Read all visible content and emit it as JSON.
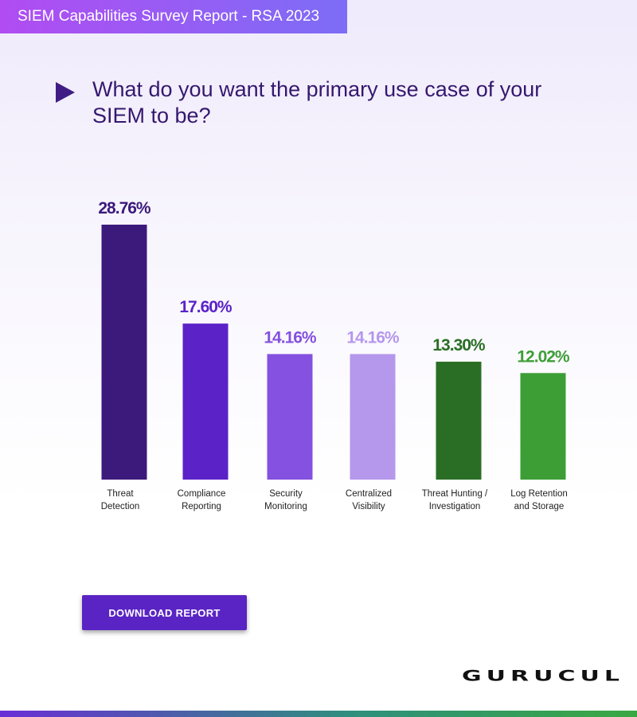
{
  "header": {
    "report_title": "SIEM Capabilities Survey Report - RSA 2023"
  },
  "question": {
    "text": "What do you want the primary use case of your SIEM to be?"
  },
  "chart_data": {
    "type": "bar",
    "title": "What do you want the primary use case of your SIEM to be?",
    "categories": [
      "Threat Detection",
      "Compliance Reporting",
      "Security Monitoring",
      "Centralized Visibility",
      "Threat Hunting / Investigation",
      "Log Retention and Storage"
    ],
    "category_lines": [
      [
        "Threat",
        "Detection"
      ],
      [
        "Compliance",
        "Reporting"
      ],
      [
        "Security",
        "Monitoring"
      ],
      [
        "Centralized",
        "Visibility"
      ],
      [
        "Threat Hunting /",
        "Investigation"
      ],
      [
        "Log Retention",
        "and Storage"
      ]
    ],
    "values": [
      28.76,
      17.6,
      14.16,
      14.16,
      13.3,
      12.02
    ],
    "value_labels": [
      "28.76%",
      "17.60%",
      "14.16%",
      "14.16%",
      "13.30%",
      "12.02%"
    ],
    "colors": [
      "#3c1a7c",
      "#5b22c8",
      "#8451e0",
      "#b597ec",
      "#2a6e25",
      "#3d9e36"
    ],
    "label_colors": [
      "#3c1a7c",
      "#5b22c8",
      "#8451e0",
      "#b597ec",
      "#2a6e25",
      "#3d9e36"
    ],
    "xlabel": "",
    "ylabel": "",
    "ylim": [
      0,
      28.76
    ],
    "grid": false,
    "legend": false
  },
  "download_button": {
    "label": "DOWNLOAD REPORT"
  },
  "brand": {
    "logo_text": "GURUCUL"
  }
}
